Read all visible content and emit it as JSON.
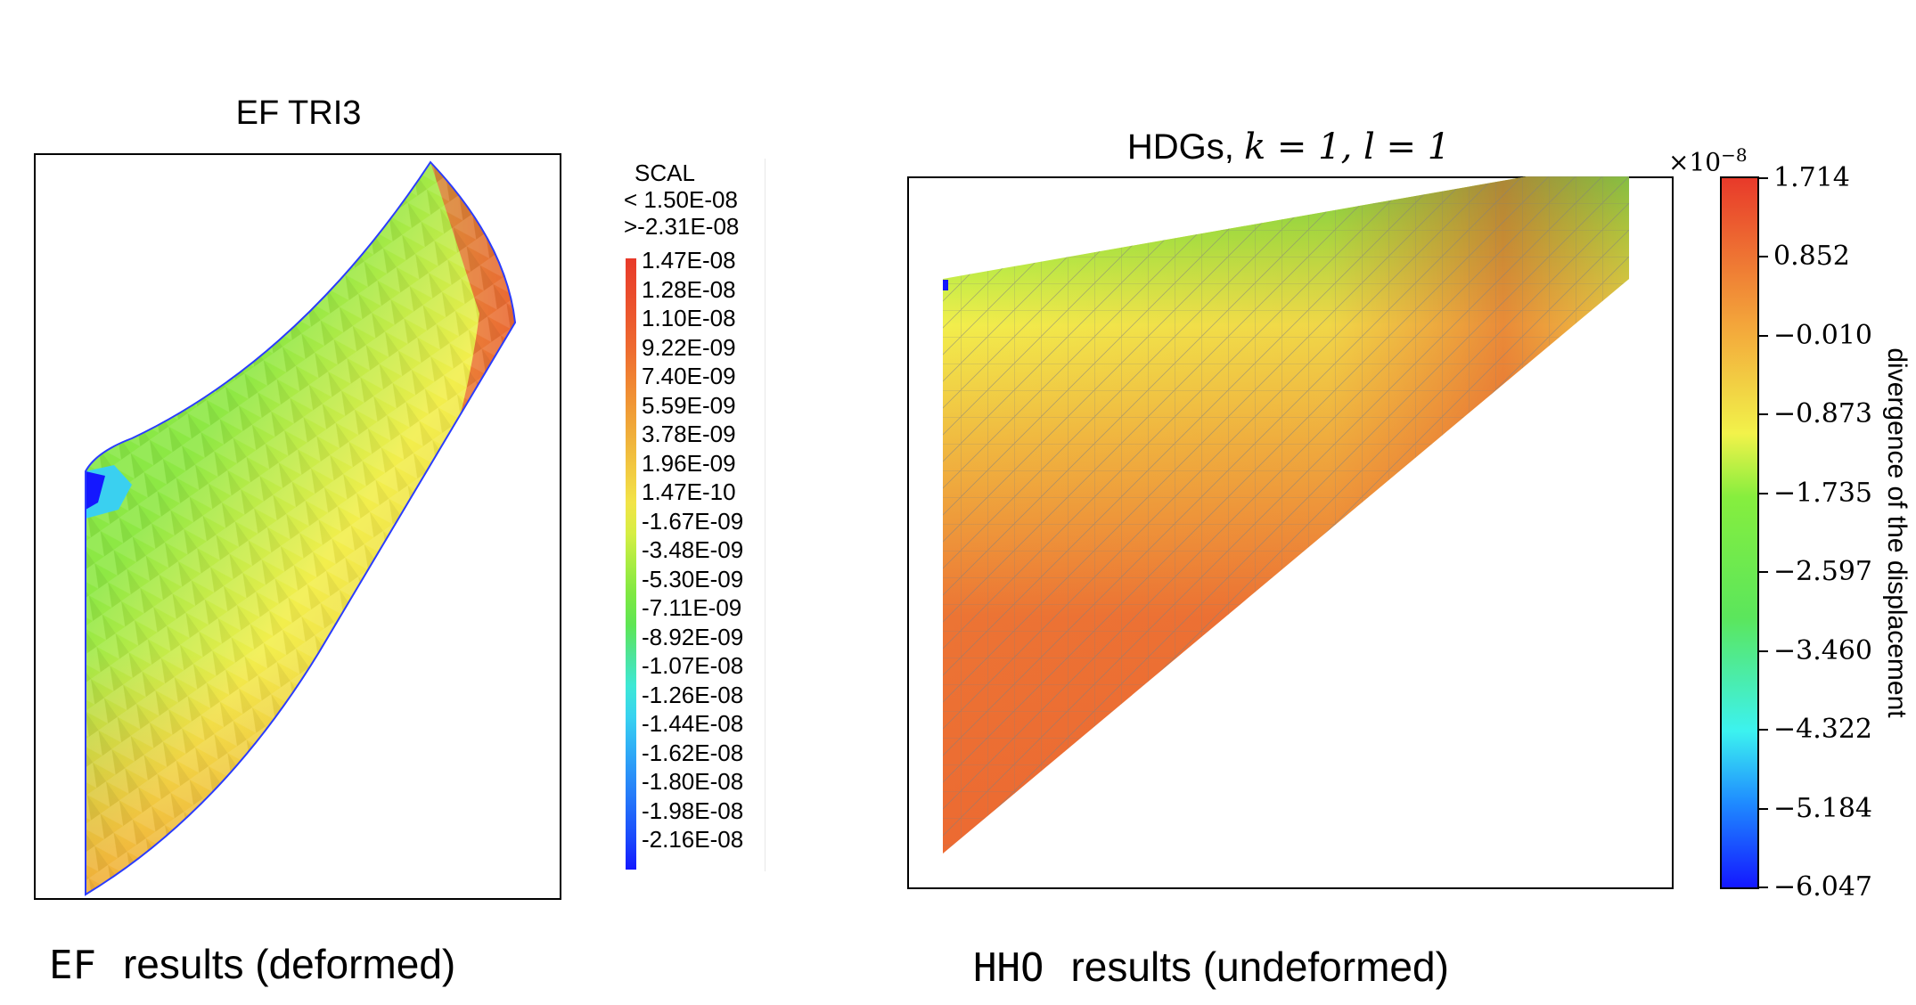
{
  "ef_panel": {
    "title": "EF TRI3",
    "legend": {
      "name": "SCAL",
      "max_line": "< 1.50E-08",
      "min_line": ">-2.31E-08",
      "values": [
        "1.47E-08",
        "1.28E-08",
        "1.10E-08",
        "9.22E-09",
        "7.40E-09",
        "5.59E-09",
        "3.78E-09",
        "1.96E-09",
        "1.47E-10",
        "-1.67E-09",
        "-3.48E-09",
        "-5.30E-09",
        "-7.11E-09",
        "-8.92E-09",
        "-1.07E-08",
        "-1.26E-08",
        "-1.44E-08",
        "-1.62E-08",
        "-1.80E-08",
        "-1.98E-08",
        "-2.16E-08"
      ]
    },
    "caption_code": "EF",
    "caption_text": "results (deformed)"
  },
  "hdg_panel": {
    "title_text": "HDGs, ",
    "title_math": "k = 1, l = 1",
    "colorbar": {
      "exponent_base": "×10",
      "exponent_power": "−8",
      "axis_label": "divergence of the displacement",
      "ticks": [
        "1.714",
        "0.852",
        "−0.010",
        "−0.873",
        "−1.735",
        "−2.597",
        "−3.460",
        "−4.322",
        "−5.184",
        "−6.047"
      ]
    },
    "caption_code": "HHO",
    "caption_text": "results (undeformed)"
  },
  "colors": {
    "red": "#e83a2a",
    "orange": "#f0a032",
    "yellow": "#f2f04a",
    "green": "#66e64a",
    "cyan": "#3cf2f0",
    "blue": "#1418ff"
  }
}
